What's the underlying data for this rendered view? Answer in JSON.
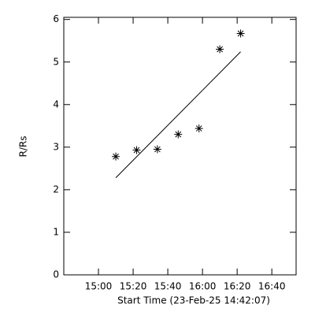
{
  "chart_data": {
    "type": "scatter",
    "xlabel": "Start Time (23-Feb-25 14:42:07)",
    "ylabel": "R/Rs",
    "x": [
      "15:10",
      "15:22",
      "15:34",
      "15:46",
      "15:58",
      "16:10",
      "16:22"
    ],
    "values": [
      2.78,
      2.93,
      2.95,
      3.3,
      3.44,
      5.3,
      5.67
    ],
    "fit": {
      "x": [
        "15:10",
        "16:22"
      ],
      "values": [
        2.28,
        5.24
      ]
    },
    "color": "#000000",
    "xlim": [
      "14:40",
      "16:54"
    ],
    "xticks": [
      "15:00",
      "15:20",
      "15:40",
      "16:00",
      "16:20",
      "16:40"
    ],
    "ylim": [
      0,
      6.05
    ],
    "yticks": [
      0,
      1,
      2,
      3,
      4,
      5,
      6
    ]
  }
}
